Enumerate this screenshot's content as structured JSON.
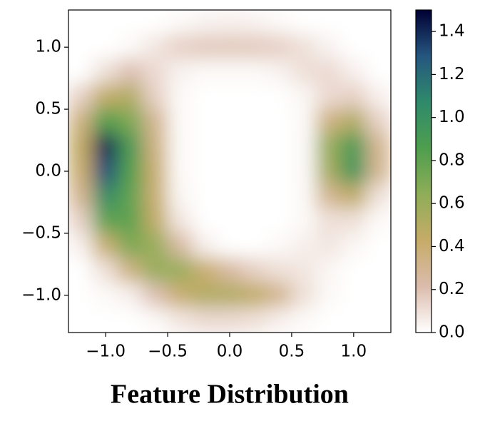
{
  "chart_data": {
    "type": "heatmap",
    "title": "Feature Distribution",
    "x": [
      -1.2,
      -1.0,
      -0.8,
      -0.6,
      -0.4,
      -0.2,
      0.0,
      0.2,
      0.4,
      0.6,
      0.8,
      1.0,
      1.2
    ],
    "y": [
      1.2,
      1.0,
      0.8,
      0.6,
      0.4,
      0.2,
      0.0,
      -0.2,
      -0.4,
      -0.6,
      -0.8,
      -1.0,
      -1.2
    ],
    "z": [
      [
        0,
        0,
        0,
        0,
        0.02,
        0.04,
        0.05,
        0.04,
        0.02,
        0,
        0,
        0,
        0
      ],
      [
        0,
        0,
        0.02,
        0.08,
        0.15,
        0.17,
        0.17,
        0.17,
        0.15,
        0.1,
        0.04,
        0,
        0
      ],
      [
        0,
        0.1,
        0.2,
        0.12,
        0.04,
        0.02,
        0.02,
        0.02,
        0.04,
        0.1,
        0.12,
        0.05,
        0
      ],
      [
        0.15,
        0.45,
        0.5,
        0.15,
        0.02,
        0,
        0,
        0,
        0,
        0.03,
        0.12,
        0.15,
        0.05
      ],
      [
        0.35,
        0.85,
        0.7,
        0.3,
        0.02,
        0,
        0,
        0,
        0,
        0.02,
        0.35,
        0.5,
        0.15
      ],
      [
        0.45,
        1.4,
        0.9,
        0.35,
        0.02,
        0,
        0,
        0,
        0,
        0.02,
        0.6,
        0.9,
        0.3
      ],
      [
        0.4,
        1.3,
        0.85,
        0.4,
        0.02,
        0,
        0,
        0,
        0,
        0.02,
        0.55,
        0.95,
        0.3
      ],
      [
        0.3,
        1.05,
        0.8,
        0.4,
        0.03,
        0,
        0,
        0,
        0,
        0.02,
        0.3,
        0.45,
        0.1
      ],
      [
        0.15,
        0.8,
        0.8,
        0.45,
        0.08,
        0,
        0,
        0,
        0,
        0.02,
        0.1,
        0.1,
        0.02
      ],
      [
        0.05,
        0.4,
        0.7,
        0.6,
        0.25,
        0.05,
        0,
        0,
        0.02,
        0.05,
        0.08,
        0.03,
        0
      ],
      [
        0,
        0.1,
        0.35,
        0.6,
        0.6,
        0.4,
        0.25,
        0.15,
        0.1,
        0.08,
        0.03,
        0,
        0
      ],
      [
        0,
        0.02,
        0.05,
        0.2,
        0.4,
        0.5,
        0.5,
        0.45,
        0.3,
        0.1,
        0.02,
        0,
        0
      ],
      [
        0,
        0,
        0,
        0.02,
        0.08,
        0.12,
        0.12,
        0.1,
        0.05,
        0.02,
        0,
        0,
        0
      ]
    ],
    "xlim": [
      -1.3,
      1.3
    ],
    "ylim": [
      -1.3,
      1.3
    ],
    "xticks": [
      {
        "value": -1.0,
        "label": "−1.0"
      },
      {
        "value": -0.5,
        "label": "−0.5"
      },
      {
        "value": 0.0,
        "label": "0.0"
      },
      {
        "value": 0.5,
        "label": "0.5"
      },
      {
        "value": 1.0,
        "label": "1.0"
      }
    ],
    "yticks": [
      {
        "value": -1.0,
        "label": "−1.0"
      },
      {
        "value": -0.5,
        "label": "−0.5"
      },
      {
        "value": 0.0,
        "label": "0.0"
      },
      {
        "value": 0.5,
        "label": "0.5"
      },
      {
        "value": 1.0,
        "label": "1.0"
      }
    ],
    "clim": [
      0,
      1.5
    ],
    "cticks": [
      {
        "value": 0,
        "label": "0.0"
      },
      {
        "value": 0.2,
        "label": "0.2"
      },
      {
        "value": 0.4,
        "label": "0.4"
      },
      {
        "value": 0.6,
        "label": "0.6"
      },
      {
        "value": 0.8,
        "label": "0.8"
      },
      {
        "value": 1,
        "label": "1.0"
      },
      {
        "value": 1.2,
        "label": "1.2"
      },
      {
        "value": 1.4,
        "label": "1.4"
      }
    ],
    "colormap": [
      "#ffffff",
      "#dbbcac",
      "#c6ab68",
      "#8fad58",
      "#4e9e4e",
      "#2f8a6b",
      "#25567f",
      "#000033"
    ]
  }
}
